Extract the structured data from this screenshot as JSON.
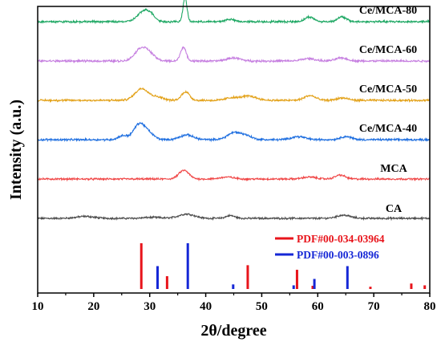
{
  "chart_data": {
    "type": "line",
    "xlabel": "2θ/degree",
    "ylabel": "Intensity (a.u.)",
    "xlim": [
      10,
      80
    ],
    "x_ticks": [
      10,
      20,
      30,
      40,
      50,
      60,
      70,
      80
    ],
    "grid": false,
    "series": [
      {
        "name": "CA",
        "color": "#4d4d4d",
        "baseline": 0.0,
        "noise": 0.018,
        "peaks": [
          {
            "x": 18.5,
            "h": 0.05,
            "w": 1.5
          },
          {
            "x": 30.5,
            "h": 0.025,
            "w": 1.5
          },
          {
            "x": 36.6,
            "h": 0.11,
            "w": 1.4
          },
          {
            "x": 44.4,
            "h": 0.07,
            "w": 0.8
          },
          {
            "x": 64.6,
            "h": 0.08,
            "w": 1.2
          }
        ]
      },
      {
        "name": "MCA",
        "color": "#f04747",
        "baseline": 1.0,
        "noise": 0.018,
        "peaks": [
          {
            "x": 36.1,
            "h": 0.22,
            "w": 0.9
          },
          {
            "x": 43.8,
            "h": 0.05,
            "w": 1.2
          },
          {
            "x": 58.5,
            "h": 0.05,
            "w": 1.2
          },
          {
            "x": 64.0,
            "h": 0.1,
            "w": 0.9
          }
        ]
      },
      {
        "name": "Ce/MCA-40",
        "color": "#1f6fe0",
        "baseline": 2.0,
        "noise": 0.02,
        "peaks": [
          {
            "x": 25.2,
            "h": 0.1,
            "w": 0.8
          },
          {
            "x": 28.1,
            "h": 0.38,
            "w": 1.0
          },
          {
            "x": 29.8,
            "h": 0.15,
            "w": 1.0
          },
          {
            "x": 36.6,
            "h": 0.12,
            "w": 1.2
          },
          {
            "x": 45.1,
            "h": 0.18,
            "w": 1.2
          },
          {
            "x": 47.3,
            "h": 0.09,
            "w": 1.0
          },
          {
            "x": 56.5,
            "h": 0.08,
            "w": 1.2
          },
          {
            "x": 65.0,
            "h": 0.08,
            "w": 1.0
          }
        ]
      },
      {
        "name": "Ce/MCA-50",
        "color": "#e3a21a",
        "baseline": 3.0,
        "noise": 0.02,
        "peaks": [
          {
            "x": 28.6,
            "h": 0.3,
            "w": 1.2
          },
          {
            "x": 31.5,
            "h": 0.08,
            "w": 1.0
          },
          {
            "x": 36.4,
            "h": 0.22,
            "w": 0.7
          },
          {
            "x": 44.5,
            "h": 0.06,
            "w": 1.0
          },
          {
            "x": 47.6,
            "h": 0.11,
            "w": 1.4
          },
          {
            "x": 58.6,
            "h": 0.12,
            "w": 1.0
          },
          {
            "x": 64.4,
            "h": 0.06,
            "w": 1.0
          }
        ]
      },
      {
        "name": "Ce/MCA-60",
        "color": "#c67fe0",
        "baseline": 4.0,
        "noise": 0.02,
        "peaks": [
          {
            "x": 28.4,
            "h": 0.3,
            "w": 1.1
          },
          {
            "x": 30.0,
            "h": 0.15,
            "w": 1.0
          },
          {
            "x": 36.0,
            "h": 0.35,
            "w": 0.5
          },
          {
            "x": 45.0,
            "h": 0.08,
            "w": 1.2
          },
          {
            "x": 58.3,
            "h": 0.06,
            "w": 1.2
          },
          {
            "x": 64.2,
            "h": 0.08,
            "w": 1.0
          }
        ]
      },
      {
        "name": "Ce/MCA-80",
        "color": "#1fa864",
        "baseline": 5.0,
        "noise": 0.02,
        "peaks": [
          {
            "x": 28.9,
            "h": 0.25,
            "w": 1.1
          },
          {
            "x": 30.2,
            "h": 0.12,
            "w": 0.8
          },
          {
            "x": 36.3,
            "h": 0.62,
            "w": 0.35
          },
          {
            "x": 44.3,
            "h": 0.06,
            "w": 0.8
          },
          {
            "x": 58.5,
            "h": 0.12,
            "w": 0.8
          },
          {
            "x": 64.3,
            "h": 0.12,
            "w": 0.8
          }
        ]
      }
    ],
    "reference_patterns": [
      {
        "name": "PDF#00-034-03964",
        "color": "#e8141b",
        "lines": [
          {
            "x": 28.5,
            "i": 100
          },
          {
            "x": 33.1,
            "i": 28
          },
          {
            "x": 47.5,
            "i": 52
          },
          {
            "x": 56.3,
            "i": 42
          },
          {
            "x": 59.1,
            "i": 7
          },
          {
            "x": 69.4,
            "i": 5
          },
          {
            "x": 76.7,
            "i": 12
          },
          {
            "x": 79.1,
            "i": 8
          }
        ]
      },
      {
        "name": "PDF#00-003-0896",
        "color": "#1527d6",
        "lines": [
          {
            "x": 31.4,
            "i": 50
          },
          {
            "x": 36.8,
            "i": 100
          },
          {
            "x": 44.9,
            "i": 10
          },
          {
            "x": 55.7,
            "i": 8
          },
          {
            "x": 59.4,
            "i": 22
          },
          {
            "x": 65.3,
            "i": 50
          }
        ]
      }
    ]
  }
}
